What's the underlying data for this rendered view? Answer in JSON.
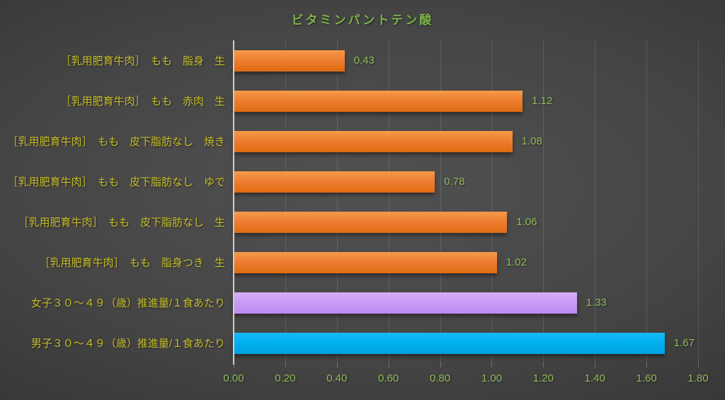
{
  "chart_data": {
    "type": "bar",
    "orientation": "horizontal",
    "title": "ビタミンパントテン酸",
    "categories": [
      "［乳用肥育牛肉］　もも　脂身　生",
      "［乳用肥育牛肉］　もも　赤肉　生",
      "［乳用肥育牛肉］　もも　皮下脂肪なし　焼き",
      "［乳用肥育牛肉］　もも　皮下脂肪なし　ゆで",
      "［乳用肥育牛肉］　もも　皮下脂肪なし　生",
      "［乳用肥育牛肉］　もも　脂身つき　生",
      "女子３０～４９（歳）推進量/１食あたり",
      "男子３０～４９（歳）推進量/１食あたり"
    ],
    "values": [
      0.43,
      1.12,
      1.08,
      0.78,
      1.06,
      1.02,
      1.33,
      1.67
    ],
    "value_labels": [
      "0.43",
      "1.12",
      "1.08",
      "0.78",
      "1.06",
      "1.02",
      "1.33",
      "1.67"
    ],
    "bar_colors": [
      "orange",
      "orange",
      "orange",
      "orange",
      "orange",
      "orange",
      "purple",
      "blue"
    ],
    "x_axis": {
      "min": 0,
      "max": 1.8,
      "tick_interval": 0.2,
      "tick_labels": [
        "0.00",
        "0.20",
        "0.40",
        "0.60",
        "0.80",
        "1.00",
        "1.20",
        "1.40",
        "1.60",
        "1.80"
      ]
    },
    "grid": true,
    "legend": false,
    "xlabel": "",
    "ylabel": ""
  },
  "colors": {
    "title_green": "#7cb24a",
    "value_green": "#8ebe5a",
    "axis_tick_green": "#8ebe5a",
    "category_yellow": "#c6bd29",
    "bar_orange": "#ed7d31",
    "bar_purple": "#c99df4",
    "bar_blue": "#00b0f0",
    "gridline_gray": "#5a5a5a",
    "axis_line_gray": "#cfcfcf",
    "background_center": "#515151",
    "background_edge": "#282828"
  }
}
